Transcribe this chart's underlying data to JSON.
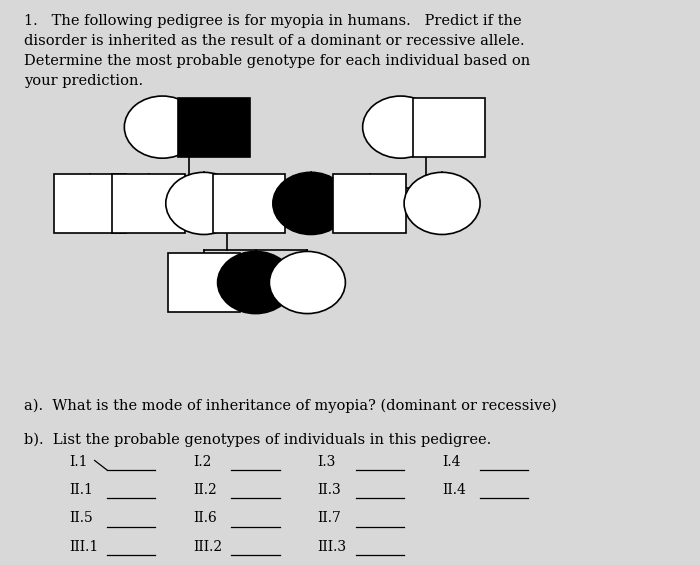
{
  "title_text": "1.   The following pedigree is for myopia in humans.   Predict if the\ndisorder is inherited as the result of a dominant or recessive allele.\nDetermine the most probable genotype for each individual based on\nyour prediction.",
  "question_a": "a).  What is the mode of inheritance of myopia? (dominant or recessive)",
  "question_b": "b).  List the probable genotypes of individuals in this pedigree.",
  "genotype_labels": [
    [
      "I.1",
      "I.2",
      "I.3",
      "I.4"
    ],
    [
      "II.1",
      "II.2",
      "II.3",
      "II.4"
    ],
    [
      "II.5",
      "II.6",
      "II.7",
      ""
    ],
    [
      "III.1",
      "III.2",
      "III.3",
      ""
    ]
  ],
  "bg_color": "#d8d8d8",
  "shape_color_empty": "#ffffff",
  "shape_color_filled": "#000000",
  "shape_edge_color": "#000000",
  "line_color": "#000000",
  "text_color": "#000000",
  "font_size_title": 10.5,
  "font_size_body": 10.5,
  "font_size_labels": 10,
  "shape_size": 0.055
}
